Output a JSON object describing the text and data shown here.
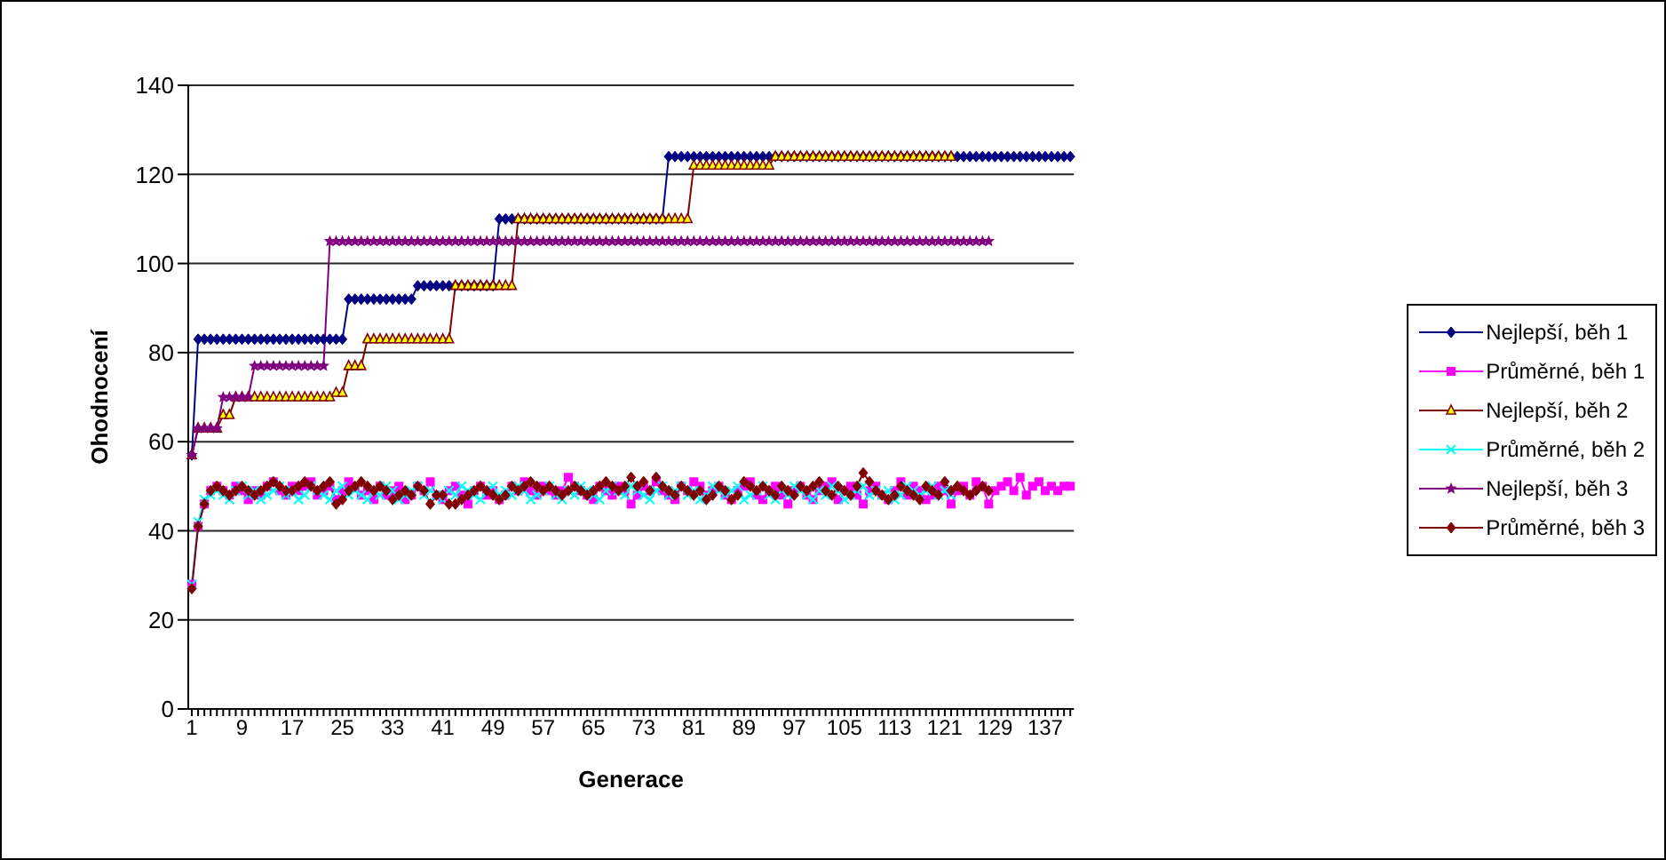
{
  "chart_data": {
    "type": "line",
    "xlabel": "Generace",
    "ylabel": "Ohodnocení",
    "categories": [
      "1",
      null,
      null,
      null,
      null,
      null,
      null,
      null,
      "9",
      null,
      null,
      null,
      null,
      null,
      null,
      null,
      "17",
      null,
      null,
      null,
      null,
      null,
      null,
      null,
      "25",
      null,
      null,
      null,
      null,
      null,
      null,
      null,
      "33",
      null,
      null,
      null,
      null,
      null,
      null,
      null,
      "41",
      null,
      null,
      null,
      null,
      null,
      null,
      null,
      "49",
      null,
      null,
      null,
      null,
      null,
      null,
      null,
      "57",
      null,
      null,
      null,
      null,
      null,
      null,
      null,
      "65",
      null,
      null,
      null,
      null,
      null,
      null,
      null,
      "73",
      null,
      null,
      null,
      null,
      null,
      null,
      null,
      "81",
      null,
      null,
      null,
      null,
      null,
      null,
      null,
      "89",
      null,
      null,
      null,
      null,
      null,
      null,
      null,
      "97",
      null,
      null,
      null,
      null,
      null,
      null,
      null,
      "105",
      null,
      null,
      null,
      null,
      null,
      null,
      null,
      "113",
      null,
      null,
      null,
      null,
      null,
      null,
      null,
      "121",
      null,
      null,
      null,
      null,
      null,
      null,
      null,
      "129",
      null,
      null,
      null,
      null,
      null,
      null,
      null,
      "137",
      null,
      null,
      null,
      null
    ],
    "series": [
      {
        "name": "Nejlepší, běh 1",
        "color": "#000080",
        "marker": "diamond",
        "values": [
          57,
          83,
          83,
          83,
          83,
          83,
          83,
          83,
          83,
          83,
          83,
          83,
          83,
          83,
          83,
          83,
          83,
          83,
          83,
          83,
          83,
          83,
          83,
          83,
          83,
          92,
          92,
          92,
          92,
          92,
          92,
          92,
          92,
          92,
          92,
          92,
          95,
          95,
          95,
          95,
          95,
          95,
          95,
          95,
          95,
          95,
          95,
          95,
          95,
          110,
          110,
          110,
          110,
          110,
          110,
          110,
          110,
          110,
          110,
          110,
          110,
          110,
          110,
          110,
          110,
          110,
          110,
          110,
          110,
          110,
          110,
          110,
          110,
          110,
          110,
          110,
          124,
          124,
          124,
          124,
          124,
          124,
          124,
          124,
          124,
          124,
          124,
          124,
          124,
          124,
          124,
          124,
          124,
          124,
          124,
          124,
          124,
          124,
          124,
          124,
          124,
          124,
          124,
          124,
          124,
          124,
          124,
          124,
          124,
          124,
          124,
          124,
          124,
          124,
          124,
          124,
          124,
          124,
          124,
          124,
          124,
          124,
          124,
          124,
          124,
          124,
          124,
          124,
          124,
          124,
          124,
          124,
          124,
          124,
          124,
          124,
          124,
          124,
          124,
          124,
          124
        ]
      },
      {
        "name": "Průměrné, běh 1",
        "color": "#ff00ff",
        "marker": "square",
        "values": [
          28,
          41,
          46,
          49,
          50,
          49,
          48,
          50,
          49,
          47,
          49,
          48,
          50,
          51,
          49,
          48,
          50,
          49,
          50,
          51,
          48,
          49,
          50,
          47,
          49,
          51,
          50,
          48,
          49,
          47,
          50,
          48,
          49,
          50,
          47,
          48,
          50,
          49,
          51,
          48,
          47,
          49,
          50,
          48,
          46,
          49,
          50,
          48,
          49,
          47,
          48,
          50,
          49,
          51,
          49,
          48,
          50,
          49,
          48,
          49,
          52,
          50,
          49,
          48,
          47,
          50,
          49,
          48,
          50,
          49,
          46,
          48,
          50,
          49,
          51,
          49,
          48,
          47,
          50,
          49,
          51,
          50,
          48,
          49,
          50,
          48,
          47,
          49,
          50,
          51,
          48,
          47,
          49,
          50,
          48,
          46,
          49,
          50,
          48,
          47,
          49,
          50,
          51,
          47,
          49,
          50,
          48,
          46,
          49,
          50,
          48,
          47,
          49,
          51,
          48,
          50,
          49,
          47,
          48,
          50,
          49,
          46,
          49,
          50,
          48,
          51,
          50,
          46,
          49,
          50,
          51,
          49,
          52,
          48,
          50,
          51,
          49,
          50,
          49,
          50,
          50
        ]
      },
      {
        "name": "Nejlepší, běh 2",
        "color": "#800000",
        "marker": "triangle",
        "values": [
          57,
          63,
          63,
          63,
          63,
          66,
          66,
          70,
          70,
          70,
          70,
          70,
          70,
          70,
          70,
          70,
          70,
          70,
          70,
          70,
          70,
          70,
          70,
          71,
          71,
          77,
          77,
          77,
          83,
          83,
          83,
          83,
          83,
          83,
          83,
          83,
          83,
          83,
          83,
          83,
          83,
          83,
          95,
          95,
          95,
          95,
          95,
          95,
          95,
          95,
          95,
          95,
          110,
          110,
          110,
          110,
          110,
          110,
          110,
          110,
          110,
          110,
          110,
          110,
          110,
          110,
          110,
          110,
          110,
          110,
          110,
          110,
          110,
          110,
          110,
          110,
          110,
          110,
          110,
          110,
          122,
          122,
          122,
          122,
          122,
          122,
          122,
          122,
          122,
          122,
          122,
          122,
          122,
          124,
          124,
          124,
          124,
          124,
          124,
          124,
          124,
          124,
          124,
          124,
          124,
          124,
          124,
          124,
          124,
          124,
          124,
          124,
          124,
          124,
          124,
          124,
          124,
          124,
          124,
          124,
          124,
          124,
          null,
          null,
          null,
          null,
          null,
          null,
          null,
          null,
          null,
          null,
          null,
          null,
          null,
          null,
          null,
          null,
          null,
          null,
          null
        ]
      },
      {
        "name": "Průměrné, běh 2",
        "color": "#00ffff",
        "marker": "cross",
        "values": [
          28,
          42,
          47,
          48,
          49,
          48,
          47,
          49,
          50,
          48,
          49,
          47,
          48,
          49,
          50,
          48,
          49,
          47,
          48,
          50,
          49,
          48,
          47,
          49,
          50,
          48,
          49,
          48,
          47,
          49,
          48,
          50,
          49,
          47,
          48,
          49,
          50,
          48,
          49,
          48,
          47,
          49,
          48,
          50,
          49,
          48,
          47,
          49,
          50,
          48,
          49,
          48,
          50,
          49,
          47,
          48,
          49,
          50,
          48,
          47,
          49,
          48,
          50,
          49,
          48,
          47,
          49,
          50,
          49,
          48,
          50,
          49,
          48,
          47,
          49,
          50,
          48,
          49,
          50,
          48,
          49,
          47,
          48,
          50,
          49,
          48,
          49,
          50,
          47,
          48,
          49,
          50,
          48,
          47,
          49,
          48,
          50,
          49,
          48,
          47,
          49,
          48,
          50,
          49,
          47,
          48,
          49,
          50,
          48,
          49,
          48,
          49,
          47,
          48,
          50,
          49,
          48,
          49,
          50,
          48,
          49,
          48,
          null,
          null,
          null,
          null,
          null,
          null,
          null,
          null,
          null,
          null,
          null,
          null,
          null,
          null,
          null,
          null,
          null,
          null,
          null
        ]
      },
      {
        "name": "Nejlepší, běh 3",
        "color": "#800080",
        "marker": "star",
        "values": [
          57,
          63,
          63,
          63,
          63,
          70,
          70,
          70,
          70,
          70,
          77,
          77,
          77,
          77,
          77,
          77,
          77,
          77,
          77,
          77,
          77,
          77,
          105,
          105,
          105,
          105,
          105,
          105,
          105,
          105,
          105,
          105,
          105,
          105,
          105,
          105,
          105,
          105,
          105,
          105,
          105,
          105,
          105,
          105,
          105,
          105,
          105,
          105,
          105,
          105,
          105,
          105,
          105,
          105,
          105,
          105,
          105,
          105,
          105,
          105,
          105,
          105,
          105,
          105,
          105,
          105,
          105,
          105,
          105,
          105,
          105,
          105,
          105,
          105,
          105,
          105,
          105,
          105,
          105,
          105,
          105,
          105,
          105,
          105,
          105,
          105,
          105,
          105,
          105,
          105,
          105,
          105,
          105,
          105,
          105,
          105,
          105,
          105,
          105,
          105,
          105,
          105,
          105,
          105,
          105,
          105,
          105,
          105,
          105,
          105,
          105,
          105,
          105,
          105,
          105,
          105,
          105,
          105,
          105,
          105,
          105,
          105,
          105,
          105,
          105,
          105,
          105,
          105,
          null,
          null,
          null,
          null,
          null,
          null,
          null,
          null,
          null,
          null,
          null,
          null,
          null
        ]
      },
      {
        "name": "Průměrné, běh 3",
        "color": "#800000",
        "marker": "diamond",
        "values": [
          27,
          41,
          46,
          49,
          50,
          49,
          48,
          49,
          50,
          49,
          48,
          49,
          50,
          51,
          50,
          49,
          49,
          50,
          51,
          50,
          49,
          50,
          51,
          46,
          47,
          49,
          50,
          51,
          50,
          49,
          50,
          49,
          47,
          48,
          49,
          48,
          50,
          49,
          46,
          48,
          48,
          46,
          46,
          47,
          48,
          49,
          50,
          49,
          48,
          47,
          48,
          50,
          49,
          50,
          51,
          50,
          49,
          50,
          49,
          48,
          49,
          50,
          49,
          48,
          49,
          50,
          51,
          50,
          49,
          50,
          52,
          50,
          51,
          49,
          52,
          50,
          49,
          48,
          50,
          49,
          48,
          49,
          47,
          48,
          50,
          49,
          47,
          48,
          51,
          50,
          49,
          50,
          49,
          48,
          50,
          49,
          48,
          50,
          49,
          50,
          51,
          49,
          48,
          50,
          49,
          48,
          50,
          53,
          51,
          49,
          48,
          47,
          48,
          50,
          49,
          48,
          47,
          50,
          49,
          48,
          51,
          49,
          50,
          49,
          48,
          49,
          50,
          49,
          null,
          null,
          null,
          null,
          null,
          null,
          null,
          null,
          null,
          null,
          null,
          null,
          null
        ]
      }
    ],
    "ylim": [
      0,
      140
    ],
    "yticks": [
      0,
      20,
      40,
      60,
      80,
      100,
      120,
      140
    ],
    "grid": "y",
    "legend": "right"
  }
}
